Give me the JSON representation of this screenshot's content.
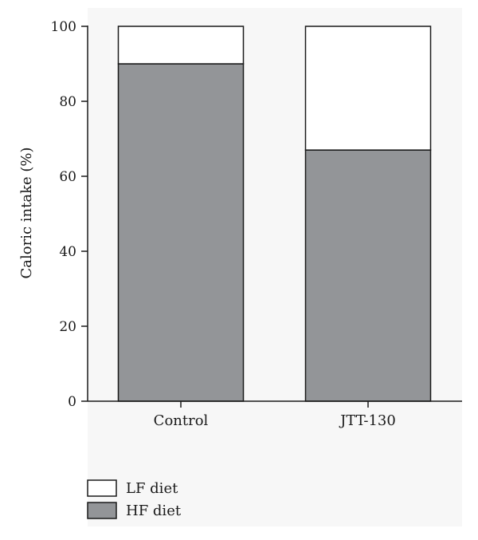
{
  "chart_data": {
    "type": "bar",
    "stacked": true,
    "categories": [
      "Control",
      "JTT-130"
    ],
    "series": [
      {
        "name": "HF diet",
        "values": [
          90,
          67
        ],
        "color": "#939598"
      },
      {
        "name": "LF diet",
        "values": [
          10,
          33
        ],
        "color": "#ffffff"
      }
    ],
    "ylabel": "Caloric intake (%)",
    "xlabel": "",
    "ylim": [
      0,
      100
    ],
    "yticks": [
      0,
      20,
      40,
      60,
      80,
      100
    ],
    "grid": false,
    "legend": {
      "placement": "bottom-left",
      "entries": [
        {
          "label": "LF diet",
          "color": "#ffffff"
        },
        {
          "label": "HF diet",
          "color": "#939598"
        }
      ]
    },
    "colors": {
      "stroke": "#1a1a1a",
      "panel_background": "#f7f7f7"
    }
  }
}
